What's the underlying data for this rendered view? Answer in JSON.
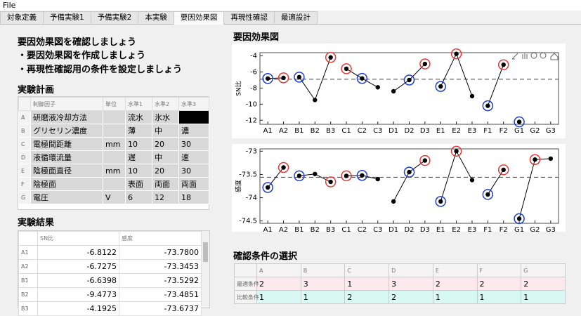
{
  "menu": "File",
  "tabs": [
    "対象定義",
    "予備実験1",
    "予備実験2",
    "本実験",
    "要因効果図",
    "再現性確認",
    "最適設計"
  ],
  "active_tab": 4,
  "intro": {
    "title": "要因効果図を確認しましょう",
    "steps": [
      "・要因効果図を作成しましょう",
      "・再現性確認用の条件を設定しましょう"
    ]
  },
  "plan": {
    "title": "実験計画",
    "header": [
      null,
      "制御因子",
      "単位",
      "水準1",
      "水準2",
      "水準3"
    ],
    "rows": [
      [
        "A",
        "研磨液冷却方法",
        null,
        "流水",
        "氷水",
        null
      ],
      [
        "B",
        "グリセリン濃度",
        null,
        "薄",
        "中",
        "濃"
      ],
      [
        "C",
        "電極間距離",
        "mm",
        "10",
        "20",
        "30"
      ],
      [
        "D",
        "液循環流量",
        null,
        "遅",
        "中",
        "速"
      ],
      [
        "E",
        "陰極面直径",
        "mm",
        "10",
        "20",
        "30"
      ],
      [
        "F",
        "陰極面",
        null,
        "表面",
        "両面",
        "両面"
      ],
      [
        "G",
        "電圧",
        "V",
        "6",
        "12",
        "18"
      ]
    ],
    "selected": [
      0,
      5
    ]
  },
  "results": {
    "title": "実験結果",
    "header": [
      null,
      "SN比",
      "感度"
    ],
    "rows": [
      [
        "A1",
        "-6.8122",
        "-73.7800"
      ],
      [
        "A2",
        "-6.7275",
        "-73.3453"
      ],
      [
        "B1",
        "-6.6398",
        "-73.5292"
      ],
      [
        "B2",
        "-9.4773",
        "-73.4851"
      ],
      [
        "B3",
        "-4.1925",
        "-73.6737"
      ]
    ]
  },
  "chart_title": "要因効果図",
  "chart_data": [
    {
      "type": "line",
      "y_label": "SN比",
      "categories": [
        "A1",
        "A2",
        "B1",
        "B2",
        "B3",
        "C1",
        "C2",
        "C3",
        "D1",
        "D2",
        "D3",
        "E1",
        "E2",
        "E3",
        "F1",
        "F2",
        "G1",
        "G2",
        "G3"
      ],
      "values": [
        -6.81,
        -6.73,
        -6.64,
        -9.48,
        -4.19,
        -5.6,
        -6.8,
        -7.9,
        -8.4,
        -7.0,
        -5.0,
        -7.8,
        -3.75,
        -9.0,
        -10.2,
        -5.1,
        -12.2,
        null,
        null
      ],
      "color": "#000000",
      "mean": -6.9,
      "ylim": [
        -12.5,
        -3.6
      ],
      "yticks": [
        -4,
        -6,
        -8,
        -10,
        -12
      ]
    },
    {
      "type": "line",
      "y_label": "感度",
      "categories": [
        "A1",
        "A2",
        "B1",
        "B2",
        "B3",
        "C1",
        "C2",
        "C3",
        "D1",
        "D2",
        "D3",
        "E1",
        "E2",
        "E3",
        "F1",
        "F2",
        "G1",
        "G2",
        "G3"
      ],
      "values": [
        -73.78,
        -73.35,
        -73.53,
        -73.49,
        -73.66,
        -73.53,
        -73.52,
        -73.6,
        -74.08,
        -73.45,
        -73.2,
        -74.08,
        -73.0,
        -73.62,
        -73.93,
        -73.4,
        -74.45,
        -73.18,
        -73.16
      ],
      "color": "#000000",
      "mean": -73.56,
      "ylim": [
        -74.55,
        -72.95
      ],
      "yticks": [
        -73,
        -73.5,
        -74,
        -74.5
      ]
    }
  ],
  "confirm": {
    "title": "確認条件の選択",
    "header": [
      null,
      "A",
      "B",
      "C",
      "D",
      "E",
      "F",
      "G"
    ],
    "rows": [
      {
        "label": "最適条件",
        "values": [
          2,
          3,
          1,
          3,
          2,
          2,
          2
        ],
        "color": "#e53935",
        "bg": "#fde8ee"
      },
      {
        "label": "比較条件",
        "values": [
          1,
          1,
          2,
          2,
          1,
          1,
          1
        ],
        "color": "#1f3fcc",
        "bg": "#d8f8f6"
      }
    ]
  }
}
